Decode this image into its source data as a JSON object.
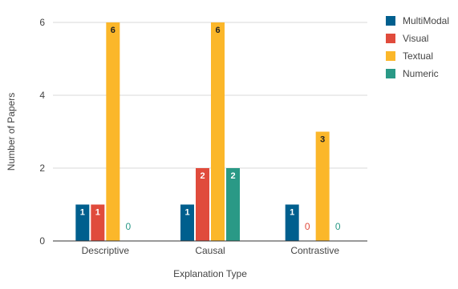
{
  "chart_data": {
    "type": "bar",
    "categories": [
      "Descriptive",
      "Causal",
      "Contrastive"
    ],
    "series": [
      {
        "name": "MultiModal",
        "values": [
          1,
          1,
          1
        ],
        "color": "#005f8e"
      },
      {
        "name": "Visual",
        "values": [
          1,
          2,
          0
        ],
        "color": "#e04b3c"
      },
      {
        "name": "Textual",
        "values": [
          6,
          6,
          3
        ],
        "color": "#fbb72a"
      },
      {
        "name": "Numeric",
        "values": [
          0,
          2,
          0
        ],
        "color": "#2a9986"
      }
    ],
    "title": "",
    "xlabel": "Explanation Type",
    "ylabel": "Number of Papers",
    "ylim": [
      0,
      6
    ],
    "yticks": [
      0,
      2,
      4,
      6
    ],
    "grid": true,
    "legend_position": "top-right",
    "data_labels": true
  }
}
